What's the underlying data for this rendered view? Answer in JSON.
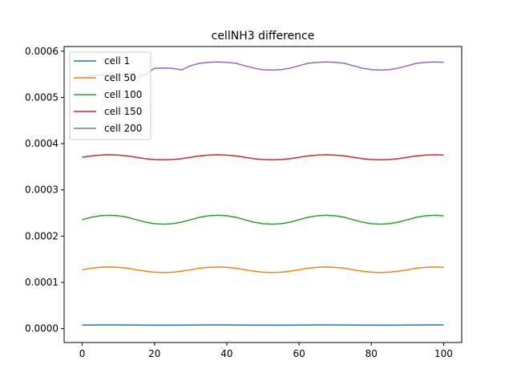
{
  "chart_data": {
    "type": "line",
    "title": "cellNH3 difference",
    "xlabel": "",
    "ylabel": "",
    "xlim": [
      -5,
      105
    ],
    "ylim": [
      -3e-05,
      0.00061
    ],
    "xticks": [
      0,
      20,
      40,
      60,
      80,
      100
    ],
    "xtick_labels": [
      "0",
      "20",
      "40",
      "60",
      "80",
      "100"
    ],
    "yticks": [
      0.0,
      0.0001,
      0.0002,
      0.0003,
      0.0004,
      0.0005,
      0.0006
    ],
    "ytick_labels": [
      "0.0000",
      "0.0001",
      "0.0002",
      "0.0003",
      "0.0004",
      "0.0005",
      "0.0006"
    ],
    "grid": false,
    "legend_position": "top-left",
    "x": [
      0,
      2.5,
      5,
      7.5,
      10,
      12.5,
      15,
      17.5,
      20,
      22.5,
      25,
      27.5,
      30,
      32.5,
      35,
      37.5,
      40,
      42.5,
      45,
      47.5,
      50,
      52.5,
      55,
      57.5,
      60,
      62.5,
      65,
      67.5,
      70,
      72.5,
      75,
      77.5,
      80,
      82.5,
      85,
      87.5,
      90,
      92.5,
      95,
      97.5,
      100
    ],
    "series": [
      {
        "name": "cell 1",
        "color": "#1f77b4",
        "values": [
          7.7e-06,
          7.8e-06,
          7.9e-06,
          7.9e-06,
          7.9e-06,
          7.8e-06,
          7.7e-06,
          7.6e-06,
          7.5e-06,
          7.5e-06,
          7.5e-06,
          7.6e-06,
          7.7e-06,
          7.8e-06,
          7.9e-06,
          7.9e-06,
          7.9e-06,
          7.8e-06,
          7.7e-06,
          7.6e-06,
          7.5e-06,
          7.5e-06,
          7.5e-06,
          7.6e-06,
          7.7e-06,
          7.8e-06,
          7.9e-06,
          7.9e-06,
          7.9e-06,
          7.8e-06,
          7.7e-06,
          7.6e-06,
          7.5e-06,
          7.5e-06,
          7.5e-06,
          7.6e-06,
          7.7e-06,
          7.8e-06,
          7.9e-06,
          7.9e-06,
          7.9e-06
        ]
      },
      {
        "name": "cell 50",
        "color": "#ff7f0e",
        "values": [
          0.0001273,
          0.0001306,
          0.0001326,
          0.0001333,
          0.0001326,
          0.0001306,
          0.0001273,
          0.0001241,
          0.000122,
          0.0001213,
          0.000122,
          0.0001241,
          0.0001273,
          0.0001306,
          0.0001326,
          0.0001333,
          0.0001326,
          0.0001306,
          0.0001273,
          0.0001241,
          0.000122,
          0.0001213,
          0.000122,
          0.0001241,
          0.0001273,
          0.0001306,
          0.0001326,
          0.0001333,
          0.0001326,
          0.0001306,
          0.0001273,
          0.0001241,
          0.000122,
          0.0001213,
          0.000122,
          0.0001241,
          0.0001273,
          0.0001306,
          0.0001326,
          0.0001333,
          0.0001326
        ]
      },
      {
        "name": "cell 100",
        "color": "#2ca02c",
        "values": [
          0.0002355,
          0.0002408,
          0.0002441,
          0.0002452,
          0.0002441,
          0.0002408,
          0.0002355,
          0.0002302,
          0.0002269,
          0.0002258,
          0.0002269,
          0.0002302,
          0.0002355,
          0.0002408,
          0.0002441,
          0.0002452,
          0.0002441,
          0.0002408,
          0.0002355,
          0.0002302,
          0.0002269,
          0.0002258,
          0.0002269,
          0.0002302,
          0.0002355,
          0.0002408,
          0.0002441,
          0.0002452,
          0.0002441,
          0.0002408,
          0.0002355,
          0.0002302,
          0.0002269,
          0.0002258,
          0.0002269,
          0.0002302,
          0.0002355,
          0.0002408,
          0.0002441,
          0.0002452,
          0.0002441
        ]
      },
      {
        "name": "cell 150",
        "color": "#d62728",
        "values": [
          0.0003705,
          0.0003735,
          0.0003753,
          0.000376,
          0.0003753,
          0.0003735,
          0.0003705,
          0.0003675,
          0.0003657,
          0.000365,
          0.0003657,
          0.0003675,
          0.0003705,
          0.0003735,
          0.0003753,
          0.000376,
          0.0003753,
          0.0003735,
          0.0003705,
          0.0003675,
          0.0003657,
          0.000365,
          0.0003657,
          0.0003675,
          0.0003705,
          0.0003735,
          0.0003753,
          0.000376,
          0.0003753,
          0.0003735,
          0.0003705,
          0.0003675,
          0.0003657,
          0.000365,
          0.0003657,
          0.0003675,
          0.0003705,
          0.0003735,
          0.0003753,
          0.000376,
          0.0003753
        ]
      },
      {
        "name": "cell 200",
        "color": "#9467bd",
        "values": [
          0.000543,
          0.0005466,
          0.0005483,
          0.0005484,
          0.0005483,
          0.0005466,
          0.000543,
          0.0005496,
          0.0005627,
          0.0005637,
          0.0005627,
          0.0005596,
          0.0005685,
          0.0005738,
          0.0005758,
          0.0005765,
          0.0005758,
          0.0005738,
          0.0005685,
          0.0005633,
          0.00056,
          0.000559,
          0.00056,
          0.0005633,
          0.0005685,
          0.0005738,
          0.0005758,
          0.0005765,
          0.0005758,
          0.0005738,
          0.0005685,
          0.0005633,
          0.00056,
          0.000559,
          0.00056,
          0.0005633,
          0.0005685,
          0.0005738,
          0.0005758,
          0.0005765,
          0.0005758
        ]
      }
    ]
  }
}
